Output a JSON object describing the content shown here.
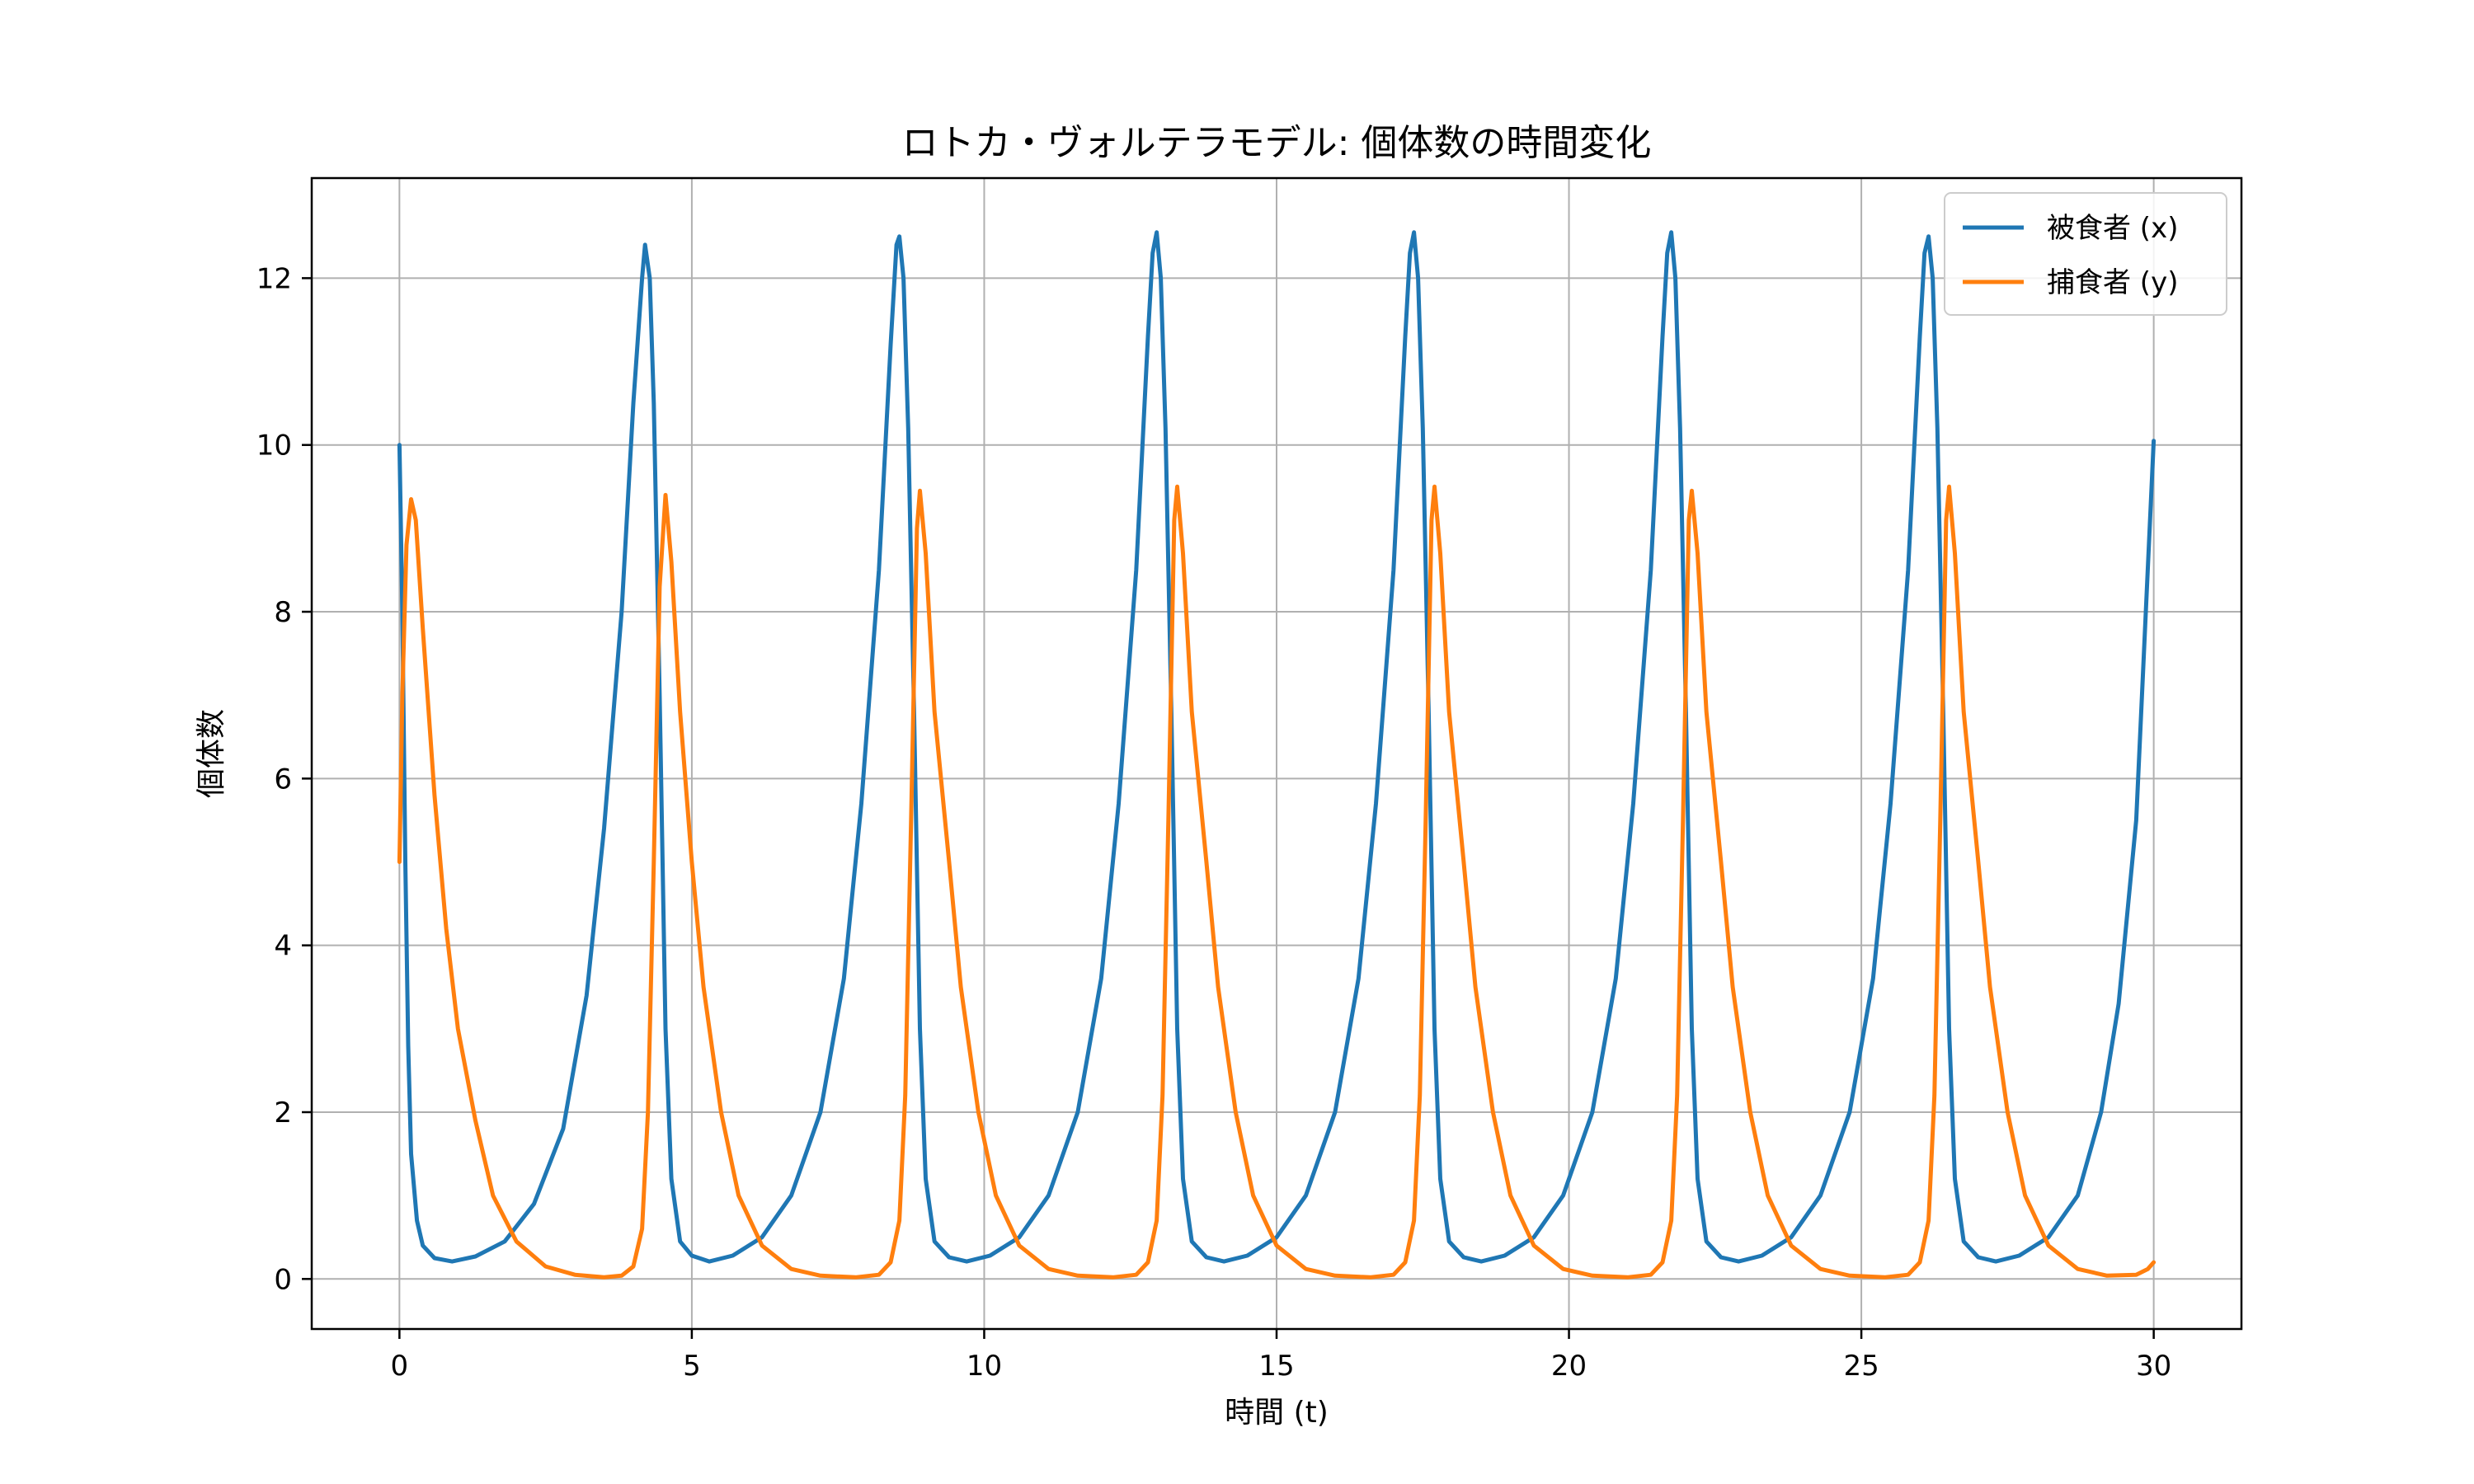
{
  "chart_data": {
    "type": "line",
    "title": "ロトカ・ヴォルテラモデル: 個体数の時間変化",
    "xlabel": "時間 (t)",
    "ylabel": "個体数",
    "xlim": [
      -1.5,
      31.5
    ],
    "ylim": [
      -0.6,
      13.2
    ],
    "xticks": [
      0,
      5,
      10,
      15,
      20,
      25,
      30
    ],
    "yticks": [
      0,
      2,
      4,
      6,
      8,
      10,
      12
    ],
    "grid": true,
    "legend_position": "top-right",
    "series": [
      {
        "name": "被食者 (x)",
        "color": "#1f77b4",
        "points": [
          [
            0.0,
            10.0
          ],
          [
            0.05,
            8.0
          ],
          [
            0.1,
            5.0
          ],
          [
            0.15,
            2.8
          ],
          [
            0.2,
            1.5
          ],
          [
            0.3,
            0.7
          ],
          [
            0.4,
            0.4
          ],
          [
            0.6,
            0.25
          ],
          [
            0.9,
            0.21
          ],
          [
            1.3,
            0.27
          ],
          [
            1.8,
            0.45
          ],
          [
            2.3,
            0.9
          ],
          [
            2.8,
            1.8
          ],
          [
            3.2,
            3.4
          ],
          [
            3.5,
            5.4
          ],
          [
            3.8,
            8.0
          ],
          [
            4.0,
            10.5
          ],
          [
            4.15,
            12.0
          ],
          [
            4.2,
            12.4
          ],
          [
            4.28,
            12.0
          ],
          [
            4.35,
            10.5
          ],
          [
            4.45,
            7.0
          ],
          [
            4.55,
            3.0
          ],
          [
            4.65,
            1.2
          ],
          [
            4.8,
            0.45
          ],
          [
            5.0,
            0.28
          ],
          [
            5.3,
            0.21
          ],
          [
            5.7,
            0.28
          ],
          [
            6.2,
            0.5
          ],
          [
            6.7,
            1.0
          ],
          [
            7.2,
            2.0
          ],
          [
            7.6,
            3.6
          ],
          [
            7.9,
            5.7
          ],
          [
            8.2,
            8.5
          ],
          [
            8.4,
            11.2
          ],
          [
            8.5,
            12.4
          ],
          [
            8.55,
            12.5
          ],
          [
            8.62,
            12.0
          ],
          [
            8.7,
            10.2
          ],
          [
            8.8,
            6.8
          ],
          [
            8.9,
            3.0
          ],
          [
            9.0,
            1.2
          ],
          [
            9.15,
            0.45
          ],
          [
            9.4,
            0.26
          ],
          [
            9.7,
            0.21
          ],
          [
            10.1,
            0.28
          ],
          [
            10.6,
            0.5
          ],
          [
            11.1,
            1.0
          ],
          [
            11.6,
            2.0
          ],
          [
            12.0,
            3.6
          ],
          [
            12.3,
            5.7
          ],
          [
            12.6,
            8.5
          ],
          [
            12.8,
            11.3
          ],
          [
            12.88,
            12.3
          ],
          [
            12.95,
            12.55
          ],
          [
            13.02,
            12.0
          ],
          [
            13.1,
            10.2
          ],
          [
            13.2,
            6.8
          ],
          [
            13.3,
            3.0
          ],
          [
            13.4,
            1.2
          ],
          [
            13.55,
            0.45
          ],
          [
            13.8,
            0.26
          ],
          [
            14.1,
            0.21
          ],
          [
            14.5,
            0.28
          ],
          [
            15.0,
            0.5
          ],
          [
            15.5,
            1.0
          ],
          [
            16.0,
            2.0
          ],
          [
            16.4,
            3.6
          ],
          [
            16.7,
            5.7
          ],
          [
            17.0,
            8.5
          ],
          [
            17.2,
            11.3
          ],
          [
            17.28,
            12.3
          ],
          [
            17.35,
            12.55
          ],
          [
            17.42,
            12.0
          ],
          [
            17.5,
            10.2
          ],
          [
            17.6,
            6.8
          ],
          [
            17.7,
            3.0
          ],
          [
            17.8,
            1.2
          ],
          [
            17.95,
            0.45
          ],
          [
            18.2,
            0.26
          ],
          [
            18.5,
            0.21
          ],
          [
            18.9,
            0.28
          ],
          [
            19.4,
            0.5
          ],
          [
            19.9,
            1.0
          ],
          [
            20.4,
            2.0
          ],
          [
            20.8,
            3.6
          ],
          [
            21.1,
            5.7
          ],
          [
            21.4,
            8.5
          ],
          [
            21.6,
            11.3
          ],
          [
            21.68,
            12.3
          ],
          [
            21.75,
            12.55
          ],
          [
            21.82,
            12.0
          ],
          [
            21.9,
            10.2
          ],
          [
            22.0,
            6.8
          ],
          [
            22.1,
            3.0
          ],
          [
            22.2,
            1.2
          ],
          [
            22.35,
            0.45
          ],
          [
            22.6,
            0.26
          ],
          [
            22.9,
            0.21
          ],
          [
            23.3,
            0.28
          ],
          [
            23.8,
            0.5
          ],
          [
            24.3,
            1.0
          ],
          [
            24.8,
            2.0
          ],
          [
            25.2,
            3.6
          ],
          [
            25.5,
            5.7
          ],
          [
            25.8,
            8.5
          ],
          [
            26.0,
            11.3
          ],
          [
            26.08,
            12.3
          ],
          [
            26.15,
            12.5
          ],
          [
            26.22,
            12.0
          ],
          [
            26.3,
            10.2
          ],
          [
            26.4,
            6.8
          ],
          [
            26.5,
            3.0
          ],
          [
            26.6,
            1.2
          ],
          [
            26.75,
            0.45
          ],
          [
            27.0,
            0.26
          ],
          [
            27.3,
            0.21
          ],
          [
            27.7,
            0.28
          ],
          [
            28.2,
            0.5
          ],
          [
            28.7,
            1.0
          ],
          [
            29.1,
            2.0
          ],
          [
            29.4,
            3.3
          ],
          [
            29.7,
            5.5
          ],
          [
            30.0,
            10.05
          ]
        ]
      },
      {
        "name": "捕食者 (y)",
        "color": "#ff7f0e",
        "points": [
          [
            0.0,
            5.0
          ],
          [
            0.05,
            7.0
          ],
          [
            0.12,
            8.8
          ],
          [
            0.2,
            9.35
          ],
          [
            0.28,
            9.1
          ],
          [
            0.4,
            7.8
          ],
          [
            0.6,
            5.8
          ],
          [
            0.8,
            4.2
          ],
          [
            1.0,
            3.0
          ],
          [
            1.3,
            1.9
          ],
          [
            1.6,
            1.0
          ],
          [
            2.0,
            0.45
          ],
          [
            2.5,
            0.15
          ],
          [
            3.0,
            0.05
          ],
          [
            3.5,
            0.02
          ],
          [
            3.8,
            0.04
          ],
          [
            4.0,
            0.15
          ],
          [
            4.15,
            0.6
          ],
          [
            4.25,
            2.0
          ],
          [
            4.35,
            5.0
          ],
          [
            4.45,
            8.3
          ],
          [
            4.55,
            9.4
          ],
          [
            4.65,
            8.6
          ],
          [
            4.8,
            6.8
          ],
          [
            5.0,
            5.0
          ],
          [
            5.2,
            3.5
          ],
          [
            5.5,
            2.0
          ],
          [
            5.8,
            1.0
          ],
          [
            6.2,
            0.4
          ],
          [
            6.7,
            0.12
          ],
          [
            7.2,
            0.04
          ],
          [
            7.8,
            0.02
          ],
          [
            8.2,
            0.05
          ],
          [
            8.4,
            0.2
          ],
          [
            8.55,
            0.7
          ],
          [
            8.65,
            2.2
          ],
          [
            8.75,
            5.5
          ],
          [
            8.85,
            9.0
          ],
          [
            8.9,
            9.45
          ],
          [
            9.0,
            8.7
          ],
          [
            9.15,
            6.8
          ],
          [
            9.4,
            5.0
          ],
          [
            9.6,
            3.5
          ],
          [
            9.9,
            2.0
          ],
          [
            10.2,
            1.0
          ],
          [
            10.6,
            0.4
          ],
          [
            11.1,
            0.12
          ],
          [
            11.6,
            0.04
          ],
          [
            12.2,
            0.02
          ],
          [
            12.6,
            0.05
          ],
          [
            12.8,
            0.2
          ],
          [
            12.95,
            0.7
          ],
          [
            13.05,
            2.2
          ],
          [
            13.15,
            5.5
          ],
          [
            13.25,
            9.1
          ],
          [
            13.3,
            9.5
          ],
          [
            13.4,
            8.7
          ],
          [
            13.55,
            6.8
          ],
          [
            13.8,
            5.0
          ],
          [
            14.0,
            3.5
          ],
          [
            14.3,
            2.0
          ],
          [
            14.6,
            1.0
          ],
          [
            15.0,
            0.4
          ],
          [
            15.5,
            0.12
          ],
          [
            16.0,
            0.04
          ],
          [
            16.6,
            0.02
          ],
          [
            17.0,
            0.05
          ],
          [
            17.2,
            0.2
          ],
          [
            17.35,
            0.7
          ],
          [
            17.45,
            2.2
          ],
          [
            17.55,
            5.5
          ],
          [
            17.65,
            9.1
          ],
          [
            17.7,
            9.5
          ],
          [
            17.8,
            8.7
          ],
          [
            17.95,
            6.8
          ],
          [
            18.2,
            5.0
          ],
          [
            18.4,
            3.5
          ],
          [
            18.7,
            2.0
          ],
          [
            19.0,
            1.0
          ],
          [
            19.4,
            0.4
          ],
          [
            19.9,
            0.12
          ],
          [
            20.4,
            0.04
          ],
          [
            21.0,
            0.02
          ],
          [
            21.4,
            0.05
          ],
          [
            21.6,
            0.2
          ],
          [
            21.75,
            0.7
          ],
          [
            21.85,
            2.2
          ],
          [
            21.95,
            5.5
          ],
          [
            22.05,
            9.1
          ],
          [
            22.1,
            9.45
          ],
          [
            22.2,
            8.7
          ],
          [
            22.35,
            6.8
          ],
          [
            22.6,
            5.0
          ],
          [
            22.8,
            3.5
          ],
          [
            23.1,
            2.0
          ],
          [
            23.4,
            1.0
          ],
          [
            23.8,
            0.4
          ],
          [
            24.3,
            0.12
          ],
          [
            24.8,
            0.04
          ],
          [
            25.4,
            0.02
          ],
          [
            25.8,
            0.05
          ],
          [
            26.0,
            0.2
          ],
          [
            26.15,
            0.7
          ],
          [
            26.25,
            2.2
          ],
          [
            26.35,
            5.5
          ],
          [
            26.45,
            9.1
          ],
          [
            26.5,
            9.5
          ],
          [
            26.6,
            8.7
          ],
          [
            26.75,
            6.8
          ],
          [
            27.0,
            5.0
          ],
          [
            27.2,
            3.5
          ],
          [
            27.5,
            2.0
          ],
          [
            27.8,
            1.0
          ],
          [
            28.2,
            0.4
          ],
          [
            28.7,
            0.12
          ],
          [
            29.2,
            0.04
          ],
          [
            29.7,
            0.05
          ],
          [
            29.9,
            0.12
          ],
          [
            30.0,
            0.2
          ]
        ]
      }
    ]
  }
}
